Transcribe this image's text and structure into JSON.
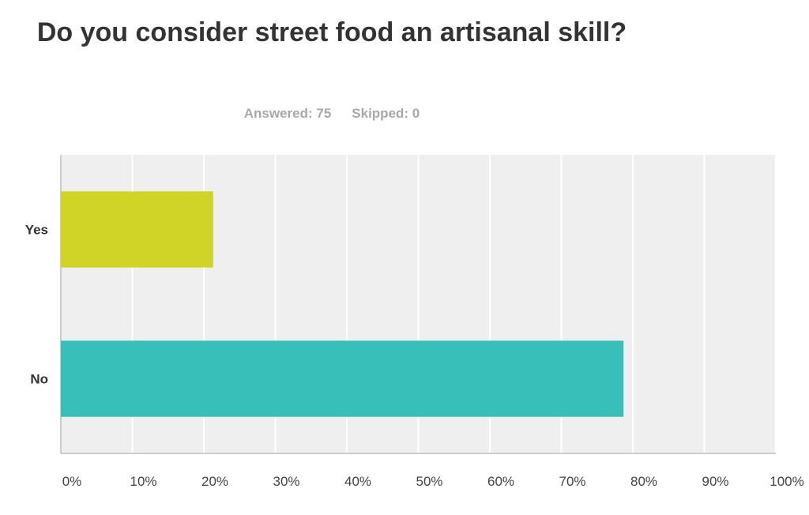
{
  "header": {
    "title": "Do you consider street food an artisanal skill?",
    "answered_label": "Answered: 75",
    "skipped_label": "Skipped: 0"
  },
  "chart_data": {
    "type": "bar",
    "orientation": "horizontal",
    "categories": [
      "Yes",
      "No"
    ],
    "values": [
      21.3,
      78.7
    ],
    "colors": [
      "#d0d427",
      "#38bfb9"
    ],
    "xlim": [
      0,
      100
    ],
    "x_ticks": [
      "0%",
      "10%",
      "20%",
      "30%",
      "40%",
      "50%",
      "60%",
      "70%",
      "80%",
      "90%",
      "100%"
    ],
    "grid": true,
    "background": "#efefef",
    "title": "Do you consider street food an artisanal skill?",
    "xlabel": "",
    "ylabel": ""
  }
}
